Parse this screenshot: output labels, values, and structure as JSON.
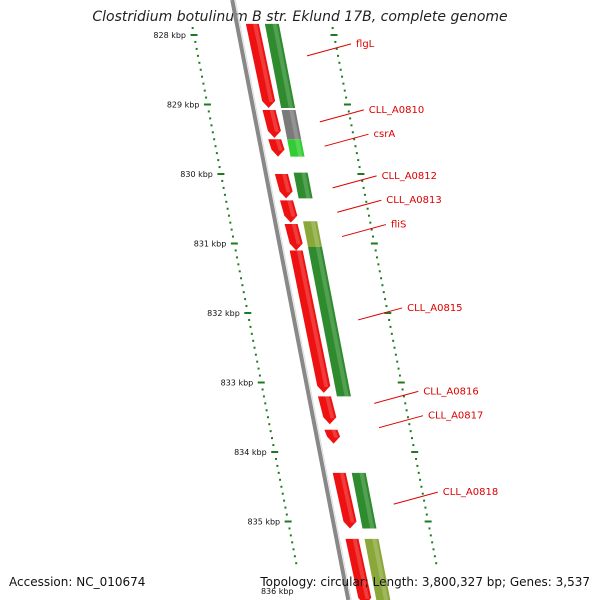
{
  "title": "Clostridium botulinum B str. Eklund 17B, complete genome",
  "footer": {
    "accession": "Accession: NC_010674",
    "summary": "Topology: circular; Length: 3,800,327 bp; Genes: 3,537"
  },
  "colors": {
    "forward_cds": "#ee1111",
    "reverse_cds": "#2e8b2e",
    "gray_cds": "#7a7a7a",
    "light_green_cds": "#33cc33",
    "olive_cds": "#8aa83a",
    "gene_label": "#dd0000",
    "backbone": "#888888",
    "tick": "#1e7a1e"
  },
  "scale": {
    "unit": "kbp",
    "ticks": [
      {
        "value": 828,
        "label": "828 kbp"
      },
      {
        "value": 829,
        "label": "829 kbp"
      },
      {
        "value": 830,
        "label": "830 kbp"
      },
      {
        "value": 831,
        "label": "831 kbp"
      },
      {
        "value": 832,
        "label": "832 kbp"
      },
      {
        "value": 833,
        "label": "833 kbp"
      },
      {
        "value": 834,
        "label": "834 kbp"
      },
      {
        "value": 835,
        "label": "835 kbp"
      },
      {
        "value": 836,
        "label": "836 kbp"
      }
    ]
  },
  "features": [
    {
      "strand": "+",
      "start": 827.84,
      "end": 829.05,
      "color": "forward_cds"
    },
    {
      "strand": "-",
      "start": 827.84,
      "end": 829.05,
      "color": "reverse_cds"
    },
    {
      "strand": "+",
      "start": 829.08,
      "end": 829.48,
      "color": "forward_cds"
    },
    {
      "strand": "-",
      "start": 829.08,
      "end": 829.5,
      "color": "gray_cds"
    },
    {
      "strand": "+",
      "start": 829.5,
      "end": 829.75,
      "color": "forward_cds"
    },
    {
      "strand": "-",
      "start": 829.5,
      "end": 829.75,
      "color": "light_green_cds"
    },
    {
      "strand": "+",
      "start": 830.0,
      "end": 830.35,
      "color": "forward_cds"
    },
    {
      "strand": "-",
      "start": 829.98,
      "end": 830.35,
      "color": "reverse_cds"
    },
    {
      "strand": "+",
      "start": 830.38,
      "end": 830.7,
      "color": "forward_cds"
    },
    {
      "strand": "+",
      "start": 830.72,
      "end": 831.1,
      "color": "forward_cds"
    },
    {
      "strand": "-",
      "start": 830.68,
      "end": 831.05,
      "color": "olive_cds"
    },
    {
      "strand": "+",
      "start": 831.1,
      "end": 833.15,
      "color": "forward_cds"
    },
    {
      "strand": "-",
      "start": 831.05,
      "end": 833.2,
      "color": "reverse_cds"
    },
    {
      "strand": "+",
      "start": 833.2,
      "end": 833.6,
      "color": "forward_cds"
    },
    {
      "strand": "+",
      "start": 833.68,
      "end": 833.88,
      "color": "forward_cds"
    },
    {
      "strand": "+",
      "start": 834.3,
      "end": 835.1,
      "color": "forward_cds"
    },
    {
      "strand": "-",
      "start": 834.3,
      "end": 835.1,
      "color": "reverse_cds"
    },
    {
      "strand": "+",
      "start": 835.25,
      "end": 836.2,
      "color": "forward_cds"
    },
    {
      "strand": "-",
      "start": 835.25,
      "end": 836.2,
      "color": "olive_cds"
    }
  ],
  "gene_labels": [
    {
      "text": "flgL",
      "at": 828.3
    },
    {
      "text": "CLL_A0810",
      "at": 829.25
    },
    {
      "text": "csrA",
      "at": 829.6
    },
    {
      "text": "CLL_A0812",
      "at": 830.2
    },
    {
      "text": "CLL_A0813",
      "at": 830.55
    },
    {
      "text": "fliS",
      "at": 830.9
    },
    {
      "text": "CLL_A0815",
      "at": 832.1
    },
    {
      "text": "CLL_A0816",
      "at": 833.3
    },
    {
      "text": "CLL_A0817",
      "at": 833.65
    },
    {
      "text": "CLL_A0818",
      "at": 834.75
    }
  ]
}
